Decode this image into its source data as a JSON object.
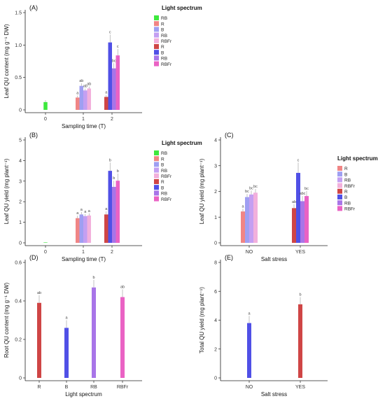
{
  "chart_data": [
    {
      "panel": "(A)",
      "type": "bar",
      "xlabel": "Sampling time (T)",
      "ylabel": "Leaf QU content (mg g⁻¹ DW)",
      "ylim": [
        0,
        1.5
      ],
      "yticks": [
        "0",
        "0.5",
        "1.0",
        "1.5"
      ],
      "categories": [
        "0",
        "1",
        "2"
      ],
      "legend_title": "Light spectrum",
      "legend_labels": [
        "RB",
        "R",
        "B",
        "RB",
        "RBFr",
        "R",
        "B",
        "RB",
        "RBFr"
      ],
      "colors": [
        "#3ee83e",
        "#f08585",
        "#9f9ff2",
        "#c49ff2",
        "#f2b0dc",
        "#cf4545",
        "#5050e6",
        "#a875e8",
        "#ea62c4"
      ],
      "bars": [
        {
          "category": 0,
          "series": 0,
          "value": 0.12,
          "error": 0.03,
          "label": ""
        },
        {
          "category": 1,
          "series": 1,
          "value": 0.19,
          "error": 0.03,
          "label": "a"
        },
        {
          "category": 1,
          "series": 2,
          "value": 0.37,
          "error": 0.04,
          "label": "ab"
        },
        {
          "category": 1,
          "series": 3,
          "value": 0.3,
          "error": 0.03,
          "label": "ab"
        },
        {
          "category": 1,
          "series": 4,
          "value": 0.33,
          "error": 0.03,
          "label": "ab"
        },
        {
          "category": 2,
          "series": 5,
          "value": 0.2,
          "error": 0.03,
          "label": "a"
        },
        {
          "category": 2,
          "series": 6,
          "value": 1.04,
          "error": 0.12,
          "label": "c"
        },
        {
          "category": 2,
          "series": 7,
          "value": 0.64,
          "error": 0.08,
          "label": "bc"
        },
        {
          "category": 2,
          "series": 8,
          "value": 0.84,
          "error": 0.1,
          "label": "c"
        }
      ]
    },
    {
      "panel": "(B)",
      "type": "bar",
      "xlabel": "Sampling time (T)",
      "ylabel": "Leaf QU yield (mg plant⁻¹)",
      "ylim": [
        0,
        5
      ],
      "yticks": [
        "0",
        "1",
        "2",
        "3",
        "4",
        "5"
      ],
      "categories": [
        "0",
        "1",
        "2"
      ],
      "legend_title": "Light spectrum",
      "legend_labels": [
        "RB",
        "R",
        "B",
        "RB",
        "RBFr",
        "R",
        "B",
        "RB",
        "RBFr"
      ],
      "colors": [
        "#3ee83e",
        "#f08585",
        "#9f9ff2",
        "#c49ff2",
        "#f2b0dc",
        "#cf4545",
        "#5050e6",
        "#a875e8",
        "#ea62c4"
      ],
      "bars": [
        {
          "category": 0,
          "series": 0,
          "value": 0.02,
          "error": 0.01,
          "label": ""
        },
        {
          "category": 1,
          "series": 1,
          "value": 1.2,
          "error": 0.12,
          "label": "a"
        },
        {
          "category": 1,
          "series": 2,
          "value": 1.38,
          "error": 0.12,
          "label": "a"
        },
        {
          "category": 1,
          "series": 3,
          "value": 1.3,
          "error": 0.1,
          "label": "a"
        },
        {
          "category": 1,
          "series": 4,
          "value": 1.33,
          "error": 0.1,
          "label": "a"
        },
        {
          "category": 2,
          "series": 5,
          "value": 1.38,
          "error": 0.15,
          "label": "a"
        },
        {
          "category": 2,
          "series": 6,
          "value": 3.5,
          "error": 0.4,
          "label": "b"
        },
        {
          "category": 2,
          "series": 7,
          "value": 2.72,
          "error": 0.3,
          "label": "b"
        },
        {
          "category": 2,
          "series": 8,
          "value": 3.02,
          "error": 0.35,
          "label": "b"
        }
      ]
    },
    {
      "panel": "(C)",
      "type": "bar",
      "xlabel": "Salt stress",
      "ylabel": "Leaf QU yield (mg plant⁻¹)",
      "ylim": [
        0,
        4
      ],
      "yticks": [
        "0",
        "1",
        "2",
        "3",
        "4"
      ],
      "categories": [
        "NO",
        "YES"
      ],
      "legend_title": "Light spectrum",
      "legend_labels": [
        "R",
        "B",
        "RB",
        "RBFr",
        "R",
        "B",
        "RB",
        "RBFr"
      ],
      "colors": [
        "#f08585",
        "#9f9ff2",
        "#c49ff2",
        "#f2b0dc",
        "#cf4545",
        "#5050e6",
        "#a875e8",
        "#ea62c4"
      ],
      "bars": [
        {
          "category": 0,
          "series": 0,
          "value": 1.22,
          "error": 0.1,
          "label": "a"
        },
        {
          "category": 0,
          "series": 1,
          "value": 1.78,
          "error": 0.12,
          "label": "bc"
        },
        {
          "category": 0,
          "series": 2,
          "value": 1.88,
          "error": 0.15,
          "label": "bc"
        },
        {
          "category": 0,
          "series": 3,
          "value": 1.95,
          "error": 0.15,
          "label": "bc"
        },
        {
          "category": 1,
          "series": 4,
          "value": 1.35,
          "error": 0.15,
          "label": "ab"
        },
        {
          "category": 1,
          "series": 5,
          "value": 2.72,
          "error": 0.4,
          "label": "c"
        },
        {
          "category": 1,
          "series": 6,
          "value": 1.62,
          "error": 0.2,
          "label": "abc"
        },
        {
          "category": 1,
          "series": 7,
          "value": 1.82,
          "error": 0.2,
          "label": "bc"
        }
      ]
    },
    {
      "panel": "(D)",
      "type": "bar",
      "xlabel": "Light spectrum",
      "ylabel": "Root QU content (mg g⁻¹ DW)",
      "ylim": [
        0,
        0.6
      ],
      "yticks": [
        "0",
        "0.2",
        "0.4",
        "0.6"
      ],
      "categories": [
        "R",
        "B",
        "RB",
        "RBFr"
      ],
      "colors": [
        "#cf4545",
        "#5050e6",
        "#a875e8",
        "#ea62c4"
      ],
      "bars": [
        {
          "category": 0,
          "series": 0,
          "value": 0.39,
          "error": 0.04,
          "label": "ab"
        },
        {
          "category": 1,
          "series": 1,
          "value": 0.26,
          "error": 0.04,
          "label": "a"
        },
        {
          "category": 2,
          "series": 2,
          "value": 0.47,
          "error": 0.04,
          "label": "b"
        },
        {
          "category": 3,
          "series": 3,
          "value": 0.42,
          "error": 0.04,
          "label": "ab"
        }
      ]
    },
    {
      "panel": "(E)",
      "type": "bar",
      "xlabel": "Salt stress",
      "ylabel": "Total QU yield (mg plant⁻¹)",
      "ylim": [
        0,
        8
      ],
      "yticks": [
        "0",
        "2",
        "4",
        "6",
        "8"
      ],
      "categories": [
        "NO",
        "YES"
      ],
      "colors": [
        "#5050e6",
        "#cf4545"
      ],
      "bars": [
        {
          "category": 0,
          "series": 0,
          "value": 3.8,
          "error": 0.5,
          "label": "a"
        },
        {
          "category": 1,
          "series": 1,
          "value": 5.1,
          "error": 0.5,
          "label": "b"
        }
      ]
    }
  ]
}
